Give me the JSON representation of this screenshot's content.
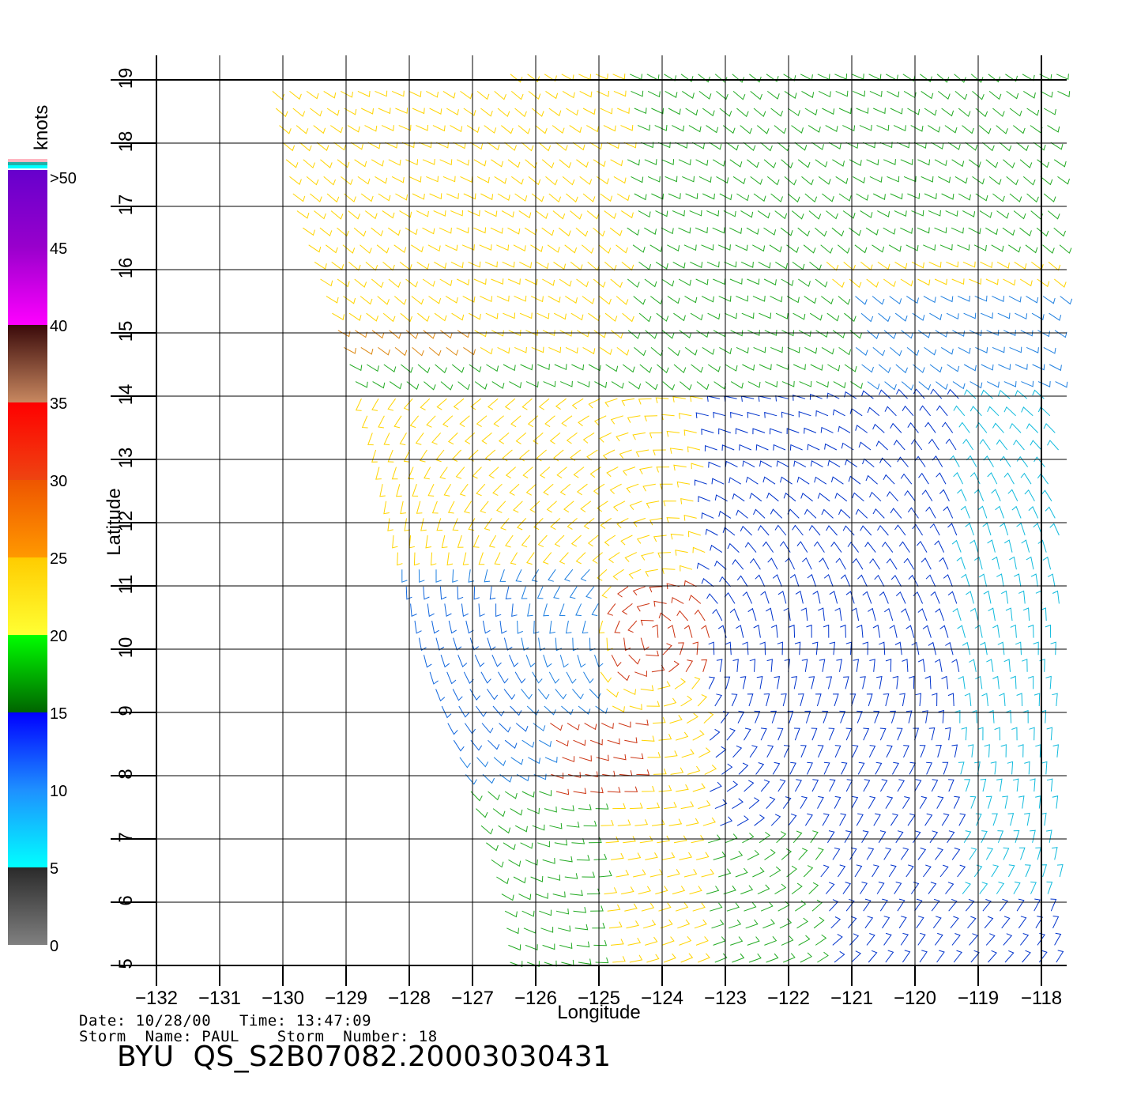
{
  "chart_data": {
    "type": "wind_barb_map",
    "title": "",
    "xlabel": "Longitude",
    "ylabel": "Latitude",
    "xlim": [
      -132,
      -118
    ],
    "ylim": [
      5,
      19
    ],
    "x_ticks": [
      -132,
      -131,
      -130,
      -129,
      -128,
      -127,
      -126,
      -125,
      -124,
      -123,
      -122,
      -121,
      -120,
      -119,
      -118
    ],
    "y_ticks": [
      5,
      6,
      7,
      8,
      9,
      10,
      11,
      12,
      13,
      14,
      15,
      16,
      17,
      18,
      19
    ],
    "grid": true,
    "colorbar": {
      "unit_label": "knots",
      "tick_labels": [
        "0",
        "5",
        "10",
        "15",
        "20",
        "25",
        "30",
        "35",
        "40",
        "45",
        ">50"
      ],
      "tick_values": [
        0,
        5,
        10,
        15,
        20,
        25,
        30,
        35,
        40,
        45,
        50
      ],
      "segments": [
        {
          "from": 0,
          "to": 5,
          "colors": [
            "#808080",
            "#2a2a2a"
          ]
        },
        {
          "from": 5,
          "to": 10,
          "colors": [
            "#00ffff",
            "#1e90ff"
          ]
        },
        {
          "from": 10,
          "to": 15,
          "colors": [
            "#1e90ff",
            "#0000ff"
          ]
        },
        {
          "from": 15,
          "to": 20,
          "colors": [
            "#006400",
            "#00ff00"
          ]
        },
        {
          "from": 20,
          "to": 25,
          "colors": [
            "#ffff33",
            "#ffcc00"
          ]
        },
        {
          "from": 25,
          "to": 30,
          "colors": [
            "#ff9900",
            "#ee5500"
          ]
        },
        {
          "from": 30,
          "to": 35,
          "colors": [
            "#ee4411",
            "#ff0000"
          ]
        },
        {
          "from": 35,
          "to": 40,
          "colors": [
            "#c88860",
            "#3a0a0a"
          ]
        },
        {
          "from": 40,
          "to": 50,
          "colors": [
            "#ff00ff",
            "#9900cc",
            "#6600cc"
          ]
        }
      ],
      "top_strip_colors": [
        "#ffb6c1",
        "#20b2aa",
        "#00ffff"
      ]
    },
    "swath": {
      "lon_left_at_lat": [
        [
          19,
          -130.2
        ],
        [
          17,
          -129.8
        ],
        [
          13.5,
          -128.6
        ],
        [
          12,
          -128.3
        ],
        [
          10,
          -127.8
        ],
        [
          8,
          -127.1
        ],
        [
          6,
          -126.5
        ],
        [
          5,
          -126.4
        ]
      ],
      "lon_right": -117.7
    },
    "wind_regions": [
      {
        "description_color": "#ffd400",
        "lon_range": [
          -130,
          -125
        ],
        "lat_range": [
          14,
          19
        ]
      },
      {
        "description_color": "#22aa22",
        "lon_range": [
          -125,
          -118
        ],
        "lat_range": [
          15,
          19
        ]
      },
      {
        "description_color": "#0033cc",
        "lon_range": [
          -123,
          -118
        ],
        "lat_range": [
          5,
          14
        ]
      },
      {
        "description_color": "#cc3311",
        "lon_range": [
          -125,
          -123
        ],
        "lat_range": [
          7.5,
          11
        ]
      }
    ]
  },
  "footer": {
    "date_line": "Date: 10/28/00   Time: 13:47:09",
    "storm_line": "Storm  Name: PAUL    Storm  Number: 18",
    "file_id": "BYU  QS_S2B07082.20003030431"
  }
}
